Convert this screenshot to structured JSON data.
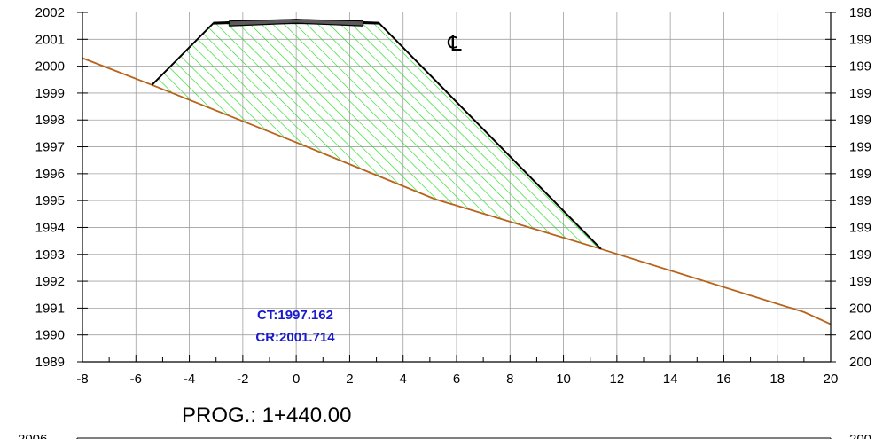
{
  "section_title": "PROG.: 1+440.00",
  "centerline_symbol": "℄",
  "annotations": {
    "ct": "CT:1997.162",
    "cr": "CR:2001.714"
  },
  "next_section_partial_labels": {
    "left": "2006",
    "right": "200"
  },
  "colors": {
    "terrain": "#b8621b",
    "fill_hatch": "#22dd22",
    "embankment": "#000000",
    "annotation": "#1a1acd",
    "grid": "#a0a0a0"
  },
  "chart_data": {
    "type": "cross-section",
    "xlim": [
      -8,
      20
    ],
    "ylim": [
      1989,
      2002
    ],
    "xticks": [
      -8,
      -6,
      -4,
      -2,
      0,
      2,
      4,
      6,
      8,
      10,
      12,
      14,
      16,
      18,
      20
    ],
    "yticks": [
      1989,
      1990,
      1991,
      1992,
      1993,
      1994,
      1995,
      1996,
      1997,
      1998,
      1999,
      2000,
      2001,
      2002
    ],
    "right_axis_tick_labels_partial": [
      "200",
      "200",
      "200",
      "199",
      "199",
      "199",
      "199",
      "199",
      "199",
      "199",
      "199",
      "199",
      "199",
      "198"
    ],
    "grid": true,
    "terrain": [
      [
        -8,
        2000.3
      ],
      [
        -5.4,
        1999.3
      ],
      [
        0,
        1997.162
      ],
      [
        5.2,
        1995.05
      ],
      [
        11.4,
        1993.2
      ],
      [
        19,
        1990.85
      ],
      [
        20,
        1990.4
      ]
    ],
    "embankment_outline": [
      [
        -5.4,
        1999.3
      ],
      [
        -3.1,
        2001.6
      ],
      [
        3.1,
        2001.6
      ],
      [
        11.4,
        1993.2
      ]
    ],
    "pavement_top": [
      [
        -3.1,
        2001.6
      ],
      [
        0,
        2001.714
      ],
      [
        3.1,
        2001.6
      ]
    ],
    "pavement_layer": [
      [
        -2.5,
        2001.5
      ],
      [
        0,
        2001.6
      ],
      [
        2.5,
        2001.5
      ]
    ],
    "centerline_x": 0
  }
}
